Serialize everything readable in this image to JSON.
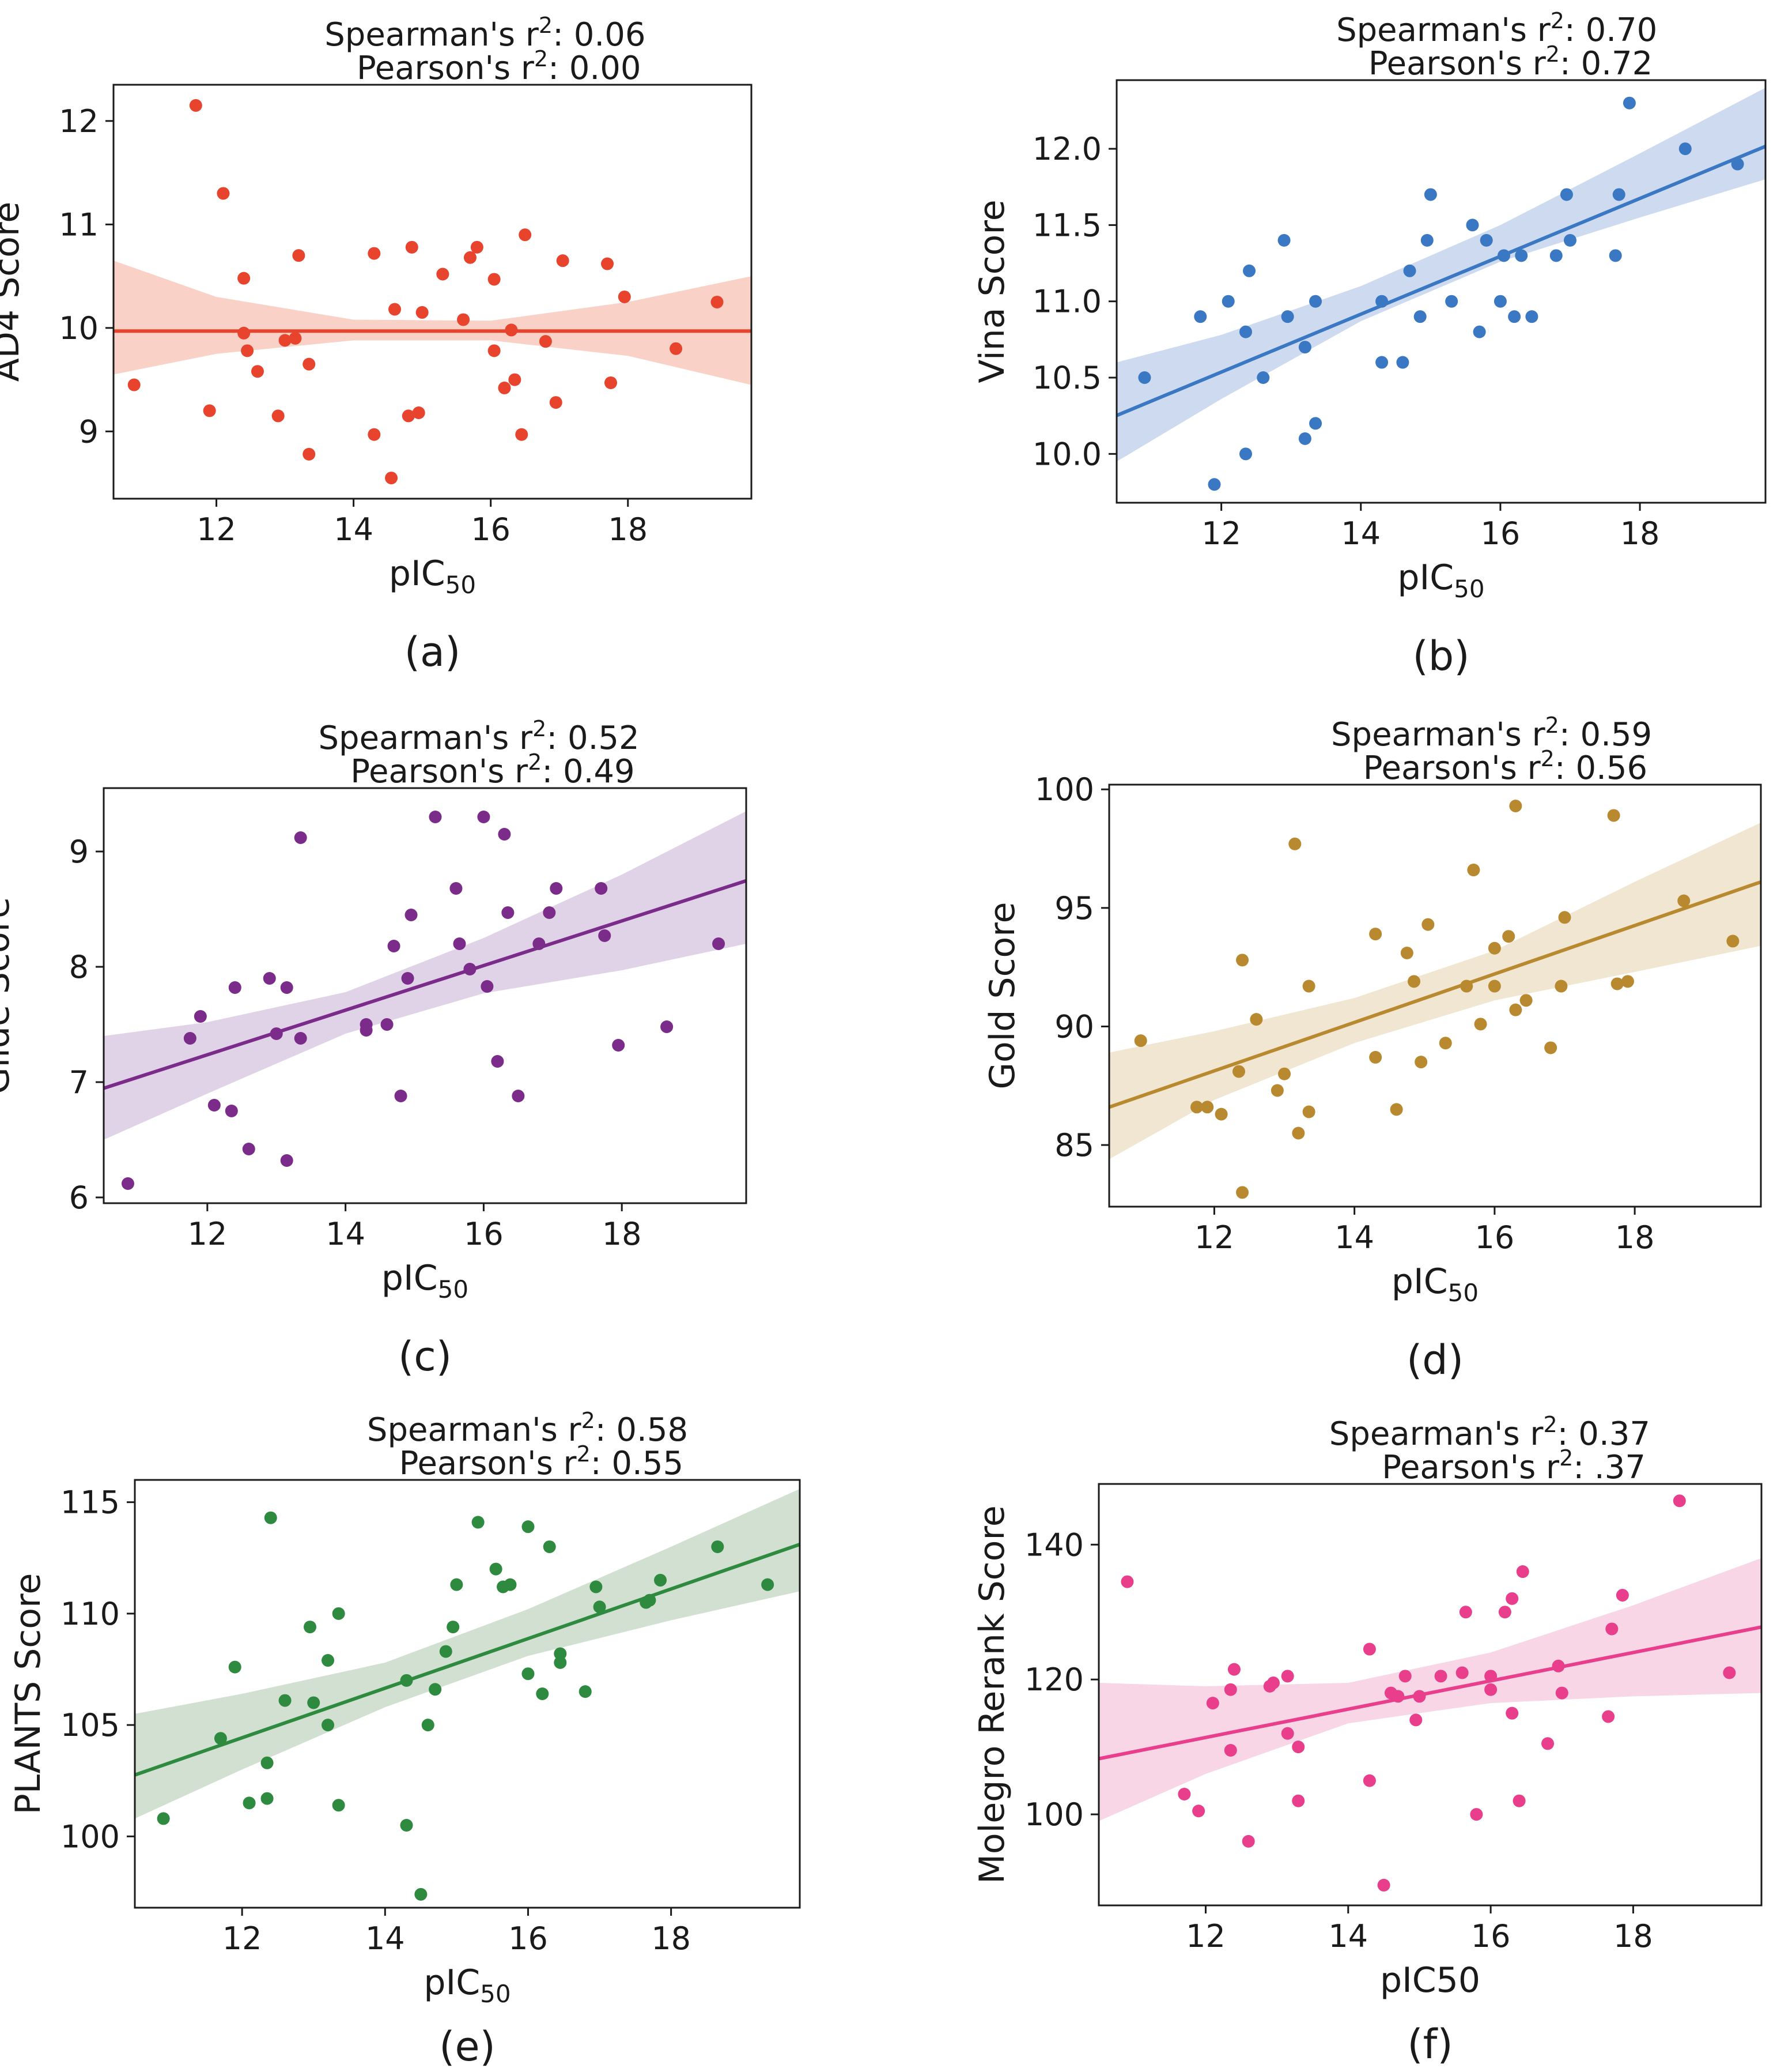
{
  "figure": {
    "background": "#ffffff"
  },
  "chart_data": [
    {
      "id": "a",
      "type": "scatter",
      "caption": "(a)",
      "xlabel": "pIC",
      "xlabel_sub": "50",
      "ylabel": "AD4 Score",
      "xlim": [
        10.5,
        19.8
      ],
      "ylim": [
        8.35,
        12.35
      ],
      "xticks": [
        12,
        14,
        16,
        18
      ],
      "yticks": [
        9,
        10,
        11,
        12
      ],
      "yformat": "int",
      "color": "#e8432d",
      "band_color": "#f9c9bd",
      "stats": {
        "spearman_label": "Spearman's r",
        "spearman_value": ": 0.06",
        "pearson_label": "Pearson's r",
        "pearson_value": ": 0.00",
        "exponent": "2"
      },
      "fit": {
        "slope": 0.0,
        "intercept": 9.97
      },
      "band": {
        "x": [
          10.5,
          12,
          14,
          16,
          18,
          19.8
        ],
        "lower": [
          9.55,
          9.75,
          9.88,
          9.88,
          9.73,
          9.45
        ],
        "upper": [
          10.65,
          10.3,
          10.08,
          10.07,
          10.25,
          10.5
        ]
      },
      "points": [
        [
          10.8,
          9.45
        ],
        [
          11.7,
          12.15
        ],
        [
          11.9,
          9.2
        ],
        [
          12.1,
          11.3
        ],
        [
          12.4,
          10.48
        ],
        [
          12.4,
          9.95
        ],
        [
          12.45,
          9.78
        ],
        [
          12.6,
          9.58
        ],
        [
          12.9,
          9.15
        ],
        [
          13.0,
          9.88
        ],
        [
          13.15,
          9.9
        ],
        [
          13.2,
          10.7
        ],
        [
          13.35,
          9.65
        ],
        [
          13.35,
          8.78
        ],
        [
          14.3,
          10.72
        ],
        [
          14.3,
          8.97
        ],
        [
          14.55,
          8.55
        ],
        [
          14.6,
          10.18
        ],
        [
          14.8,
          9.15
        ],
        [
          14.85,
          10.78
        ],
        [
          14.95,
          9.18
        ],
        [
          15.0,
          10.15
        ],
        [
          15.3,
          10.52
        ],
        [
          15.6,
          10.08
        ],
        [
          15.7,
          10.68
        ],
        [
          15.8,
          10.78
        ],
        [
          16.05,
          10.47
        ],
        [
          16.05,
          9.78
        ],
        [
          16.2,
          9.42
        ],
        [
          16.3,
          9.98
        ],
        [
          16.35,
          9.5
        ],
        [
          16.45,
          8.97
        ],
        [
          16.5,
          10.9
        ],
        [
          16.8,
          9.87
        ],
        [
          16.95,
          9.28
        ],
        [
          17.05,
          10.65
        ],
        [
          17.7,
          10.62
        ],
        [
          17.75,
          9.47
        ],
        [
          17.95,
          10.3
        ],
        [
          18.7,
          9.8
        ],
        [
          19.3,
          10.25
        ]
      ]
    },
    {
      "id": "b",
      "type": "scatter",
      "caption": "(b)",
      "xlabel": "pIC",
      "xlabel_sub": "50",
      "ylabel": "Vina Score",
      "xlim": [
        10.5,
        19.8
      ],
      "ylim": [
        9.68,
        12.45
      ],
      "xticks": [
        12,
        14,
        16,
        18
      ],
      "yticks": [
        10.0,
        10.5,
        11.0,
        11.5,
        12.0
      ],
      "yformat": "fixed1",
      "color": "#3a78c3",
      "band_color": "#c6d4ec",
      "stats": {
        "spearman_label": "Spearman's r",
        "spearman_value": ": 0.70",
        "pearson_label": "Pearson's r",
        "pearson_value": ": 0.72",
        "exponent": "2"
      },
      "fit": {
        "slope": 0.1897,
        "intercept": 8.26
      },
      "band": {
        "x": [
          10.5,
          12,
          14,
          16,
          18,
          19.8
        ],
        "lower": [
          9.95,
          10.36,
          10.87,
          11.26,
          11.55,
          11.8
        ],
        "upper": [
          10.6,
          10.78,
          11.1,
          11.5,
          11.97,
          12.4
        ]
      },
      "points": [
        [
          10.9,
          10.5
        ],
        [
          11.7,
          10.9
        ],
        [
          11.9,
          9.8
        ],
        [
          12.1,
          11.0
        ],
        [
          12.35,
          10.0
        ],
        [
          12.35,
          10.8
        ],
        [
          12.4,
          11.2
        ],
        [
          12.6,
          10.5
        ],
        [
          12.9,
          11.4
        ],
        [
          12.95,
          10.9
        ],
        [
          13.2,
          10.1
        ],
        [
          13.2,
          10.7
        ],
        [
          13.35,
          10.2
        ],
        [
          13.35,
          11.0
        ],
        [
          14.3,
          11.0
        ],
        [
          14.3,
          10.6
        ],
        [
          14.6,
          10.6
        ],
        [
          14.7,
          11.2
        ],
        [
          14.85,
          10.9
        ],
        [
          14.95,
          11.4
        ],
        [
          15.0,
          11.7
        ],
        [
          15.3,
          11.0
        ],
        [
          15.6,
          11.5
        ],
        [
          15.7,
          10.8
        ],
        [
          15.8,
          11.4
        ],
        [
          16.0,
          11.0
        ],
        [
          16.05,
          11.3
        ],
        [
          16.2,
          10.9
        ],
        [
          16.3,
          11.3
        ],
        [
          16.45,
          10.9
        ],
        [
          16.8,
          11.3
        ],
        [
          16.95,
          11.7
        ],
        [
          17.0,
          11.4
        ],
        [
          17.65,
          11.3
        ],
        [
          17.7,
          11.7
        ],
        [
          17.85,
          12.3
        ],
        [
          18.65,
          12.0
        ],
        [
          19.4,
          11.9
        ]
      ]
    },
    {
      "id": "c",
      "type": "scatter",
      "caption": "(c)",
      "xlabel": "pIC",
      "xlabel_sub": "50",
      "ylabel": "Glide Score",
      "xlim": [
        10.5,
        19.8
      ],
      "ylim": [
        5.95,
        9.55
      ],
      "xticks": [
        12,
        14,
        16,
        18
      ],
      "yticks": [
        6,
        7,
        8,
        9
      ],
      "yformat": "int",
      "color": "#7b2b8a",
      "band_color": "#dccbe3",
      "stats": {
        "spearman_label": "Spearman's r",
        "spearman_value": ": 0.52",
        "pearson_label": "Pearson's r",
        "pearson_value": ": 0.49",
        "exponent": "2"
      },
      "fit": {
        "slope": 0.1935,
        "intercept": 4.915
      },
      "band": {
        "x": [
          10.5,
          12,
          14,
          16,
          18,
          19.8
        ],
        "lower": [
          6.5,
          6.9,
          7.42,
          7.77,
          7.97,
          8.2
        ],
        "upper": [
          7.4,
          7.52,
          7.78,
          8.25,
          8.8,
          9.35
        ]
      },
      "points": [
        [
          10.85,
          6.12
        ],
        [
          11.75,
          7.38
        ],
        [
          11.9,
          7.57
        ],
        [
          12.1,
          6.8
        ],
        [
          12.35,
          6.75
        ],
        [
          12.4,
          7.82
        ],
        [
          12.6,
          6.42
        ],
        [
          12.9,
          7.9
        ],
        [
          13.0,
          7.42
        ],
        [
          13.15,
          6.32
        ],
        [
          13.15,
          7.82
        ],
        [
          13.35,
          9.12
        ],
        [
          13.35,
          7.38
        ],
        [
          14.3,
          7.5
        ],
        [
          14.3,
          7.45
        ],
        [
          14.6,
          7.5
        ],
        [
          14.7,
          8.18
        ],
        [
          14.8,
          6.88
        ],
        [
          14.9,
          7.9
        ],
        [
          14.95,
          8.45
        ],
        [
          15.3,
          9.3
        ],
        [
          15.6,
          8.68
        ],
        [
          15.65,
          8.2
        ],
        [
          15.8,
          7.98
        ],
        [
          16.0,
          9.3
        ],
        [
          16.05,
          7.83
        ],
        [
          16.2,
          7.18
        ],
        [
          16.3,
          9.15
        ],
        [
          16.35,
          8.47
        ],
        [
          16.5,
          6.88
        ],
        [
          16.8,
          8.2
        ],
        [
          16.95,
          8.47
        ],
        [
          17.05,
          8.68
        ],
        [
          17.7,
          8.68
        ],
        [
          17.75,
          8.27
        ],
        [
          17.95,
          7.32
        ],
        [
          18.65,
          7.48
        ],
        [
          19.4,
          8.2
        ]
      ]
    },
    {
      "id": "d",
      "type": "scatter",
      "caption": "(d)",
      "xlabel": "pIC",
      "xlabel_sub": "50",
      "ylabel": "Gold Score",
      "xlim": [
        10.5,
        19.8
      ],
      "ylim": [
        82.4,
        100.2
      ],
      "xticks": [
        12,
        14,
        16,
        18
      ],
      "yticks": [
        85,
        90,
        95,
        100
      ],
      "yformat": "int",
      "color": "#b8892e",
      "band_color": "#ede2c9",
      "stats": {
        "spearman_label": "Spearman's r",
        "spearman_value": ": 0.59",
        "pearson_label": "Pearson's r",
        "pearson_value": ": 0.56",
        "exponent": "2"
      },
      "fit": {
        "slope": 1.0215,
        "intercept": 75.87
      },
      "band": {
        "x": [
          10.5,
          12,
          14,
          16,
          18,
          19.8
        ],
        "lower": [
          84.4,
          86.9,
          89.3,
          91.1,
          92.3,
          93.4
        ],
        "upper": [
          88.9,
          89.8,
          91.2,
          93.2,
          96.1,
          98.6
        ]
      },
      "points": [
        [
          10.95,
          89.4
        ],
        [
          11.75,
          86.6
        ],
        [
          11.9,
          86.6
        ],
        [
          12.1,
          86.3
        ],
        [
          12.35,
          88.1
        ],
        [
          12.4,
          92.8
        ],
        [
          12.4,
          83.0
        ],
        [
          12.6,
          90.3
        ],
        [
          12.9,
          87.3
        ],
        [
          13.0,
          88.0
        ],
        [
          13.15,
          97.7
        ],
        [
          13.2,
          85.5
        ],
        [
          13.35,
          91.7
        ],
        [
          13.35,
          86.4
        ],
        [
          14.3,
          93.9
        ],
        [
          14.3,
          88.7
        ],
        [
          14.6,
          86.5
        ],
        [
          14.75,
          93.1
        ],
        [
          14.85,
          91.9
        ],
        [
          14.95,
          88.5
        ],
        [
          15.05,
          94.3
        ],
        [
          15.3,
          89.3
        ],
        [
          15.6,
          91.7
        ],
        [
          15.7,
          96.6
        ],
        [
          15.8,
          90.1
        ],
        [
          16.0,
          91.7
        ],
        [
          16.0,
          93.3
        ],
        [
          16.2,
          93.8
        ],
        [
          16.3,
          99.3
        ],
        [
          16.3,
          90.7
        ],
        [
          16.45,
          91.1
        ],
        [
          16.8,
          89.1
        ],
        [
          16.95,
          91.7
        ],
        [
          17.0,
          94.6
        ],
        [
          17.7,
          98.9
        ],
        [
          17.75,
          91.8
        ],
        [
          17.9,
          91.9
        ],
        [
          18.7,
          95.3
        ],
        [
          19.4,
          93.6
        ]
      ]
    },
    {
      "id": "e",
      "type": "scatter",
      "caption": "(e)",
      "xlabel": "pIC",
      "xlabel_sub": "50",
      "ylabel": "PLANTS Score",
      "xlim": [
        10.5,
        19.8
      ],
      "ylim": [
        96.8,
        116.0
      ],
      "xticks": [
        12,
        14,
        16,
        18
      ],
      "yticks": [
        100,
        105,
        110,
        115
      ],
      "yformat": "int",
      "color": "#2d8a3e",
      "band_color": "#cadbc9",
      "stats": {
        "spearman_label": "Spearman's r",
        "spearman_value": ": 0.58",
        "pearson_label": "Pearson's r",
        "pearson_value": ": 0.55",
        "exponent": "2"
      },
      "fit": {
        "slope": 1.113,
        "intercept": 91.07
      },
      "band": {
        "x": [
          10.5,
          12,
          14,
          16,
          18,
          19.8
        ],
        "lower": [
          100.8,
          103.0,
          105.8,
          108.1,
          109.7,
          111.0
        ],
        "upper": [
          105.5,
          106.4,
          107.8,
          110.2,
          113.0,
          115.6
        ]
      },
      "points": [
        [
          10.9,
          100.8
        ],
        [
          11.7,
          104.4
        ],
        [
          11.9,
          107.6
        ],
        [
          12.1,
          101.5
        ],
        [
          12.35,
          101.7
        ],
        [
          12.35,
          103.3
        ],
        [
          12.4,
          114.3
        ],
        [
          12.6,
          106.1
        ],
        [
          12.95,
          109.4
        ],
        [
          13.0,
          106.0
        ],
        [
          13.2,
          105.0
        ],
        [
          13.2,
          107.9
        ],
        [
          13.35,
          101.4
        ],
        [
          13.35,
          110.0
        ],
        [
          14.3,
          107.0
        ],
        [
          14.3,
          100.5
        ],
        [
          14.5,
          97.4
        ],
        [
          14.6,
          105.0
        ],
        [
          14.7,
          106.6
        ],
        [
          14.85,
          108.3
        ],
        [
          14.95,
          109.4
        ],
        [
          15.0,
          111.3
        ],
        [
          15.3,
          114.1
        ],
        [
          15.55,
          112.0
        ],
        [
          15.65,
          111.2
        ],
        [
          15.75,
          111.3
        ],
        [
          16.0,
          113.9
        ],
        [
          16.0,
          107.3
        ],
        [
          16.2,
          106.4
        ],
        [
          16.3,
          113.0
        ],
        [
          16.45,
          107.8
        ],
        [
          16.45,
          108.2
        ],
        [
          16.8,
          106.5
        ],
        [
          16.95,
          111.2
        ],
        [
          17.0,
          110.3
        ],
        [
          17.65,
          110.5
        ],
        [
          17.7,
          110.6
        ],
        [
          17.85,
          111.5
        ],
        [
          18.65,
          113.0
        ],
        [
          19.35,
          111.3
        ]
      ]
    },
    {
      "id": "f",
      "type": "scatter",
      "caption": "(f)",
      "xlabel": "pIC50",
      "xlabel_sub": "",
      "ylabel": "Molegro Rerank Score",
      "xlim": [
        10.5,
        19.8
      ],
      "ylim": [
        86.5,
        149.0
      ],
      "xticks": [
        12,
        14,
        16,
        18
      ],
      "yticks": [
        100,
        120,
        140
      ],
      "yformat": "int",
      "color": "#e83e8c",
      "band_color": "#f7cfe0",
      "stats": {
        "spearman_label": "Spearman's r",
        "spearman_value": ": 0.37",
        "pearson_label": "Pearson's r",
        "pearson_value": ": .37",
        "exponent": "2"
      },
      "fit": {
        "slope": 2.1,
        "intercept": 86.2
      },
      "band": {
        "x": [
          10.5,
          12,
          14,
          16,
          18,
          19.8
        ],
        "lower": [
          99.0,
          106.0,
          113.5,
          116.5,
          117.5,
          118.0
        ],
        "upper": [
          119.5,
          119.0,
          119.5,
          124.0,
          131.0,
          138.0
        ]
      },
      "points": [
        [
          10.9,
          134.5
        ],
        [
          11.7,
          103.0
        ],
        [
          11.9,
          100.5
        ],
        [
          12.1,
          116.5
        ],
        [
          12.35,
          109.5
        ],
        [
          12.35,
          118.5
        ],
        [
          12.4,
          121.5
        ],
        [
          12.6,
          96.0
        ],
        [
          12.9,
          119.0
        ],
        [
          12.95,
          119.5
        ],
        [
          13.15,
          112.0
        ],
        [
          13.15,
          120.5
        ],
        [
          13.3,
          102.0
        ],
        [
          13.3,
          110.0
        ],
        [
          14.3,
          124.5
        ],
        [
          14.3,
          105.0
        ],
        [
          14.5,
          89.5
        ],
        [
          14.6,
          118.0
        ],
        [
          14.7,
          117.5
        ],
        [
          14.8,
          120.5
        ],
        [
          14.95,
          114.0
        ],
        [
          15.0,
          117.5
        ],
        [
          15.3,
          120.5
        ],
        [
          15.6,
          121.0
        ],
        [
          15.65,
          130.0
        ],
        [
          15.8,
          100.0
        ],
        [
          16.0,
          120.5
        ],
        [
          16.0,
          118.5
        ],
        [
          16.2,
          130.0
        ],
        [
          16.3,
          132.0
        ],
        [
          16.3,
          115.0
        ],
        [
          16.4,
          102.0
        ],
        [
          16.45,
          136.0
        ],
        [
          16.8,
          110.5
        ],
        [
          16.95,
          122.0
        ],
        [
          17.0,
          118.0
        ],
        [
          17.65,
          114.5
        ],
        [
          17.7,
          127.5
        ],
        [
          17.85,
          132.5
        ],
        [
          18.65,
          146.5
        ],
        [
          19.35,
          121.0
        ]
      ]
    }
  ]
}
